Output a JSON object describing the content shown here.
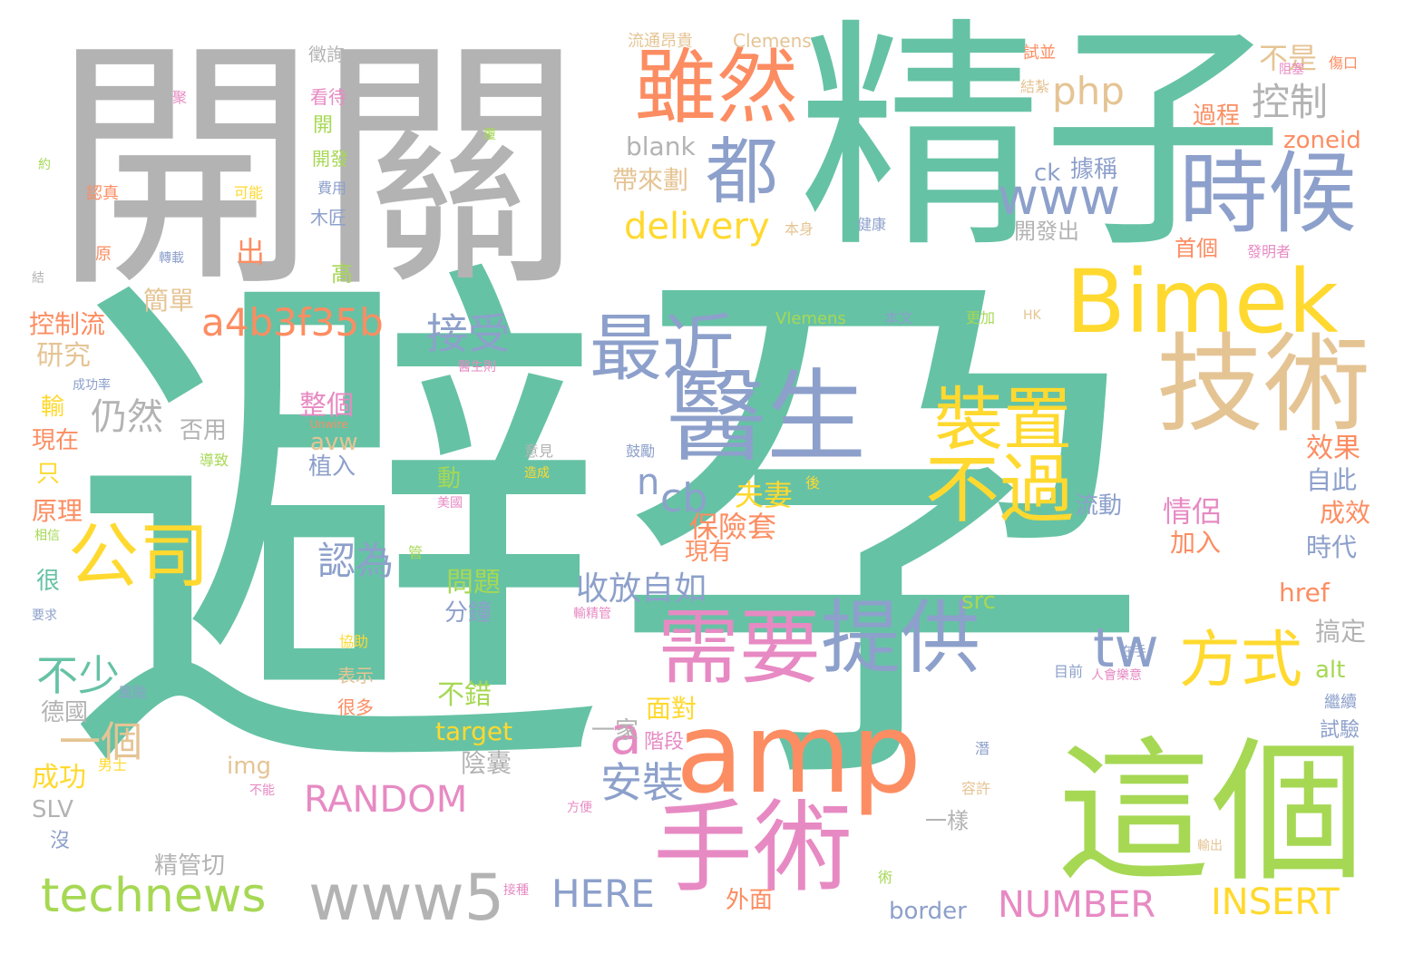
{
  "palette": {
    "green": "#66c2a5",
    "orange": "#fc8d62",
    "blue": "#8da0cb",
    "pink": "#e78ac3",
    "lime": "#a6d854",
    "yellow": "#ffd92f",
    "tan": "#e5c494",
    "gray": "#b3b3b3"
  },
  "words": [
    {
      "id": "w1",
      "text": "避孕"
    },
    {
      "id": "w2",
      "text": "精子"
    },
    {
      "id": "w3",
      "text": "開關"
    },
    {
      "id": "w4",
      "text": "amp"
    },
    {
      "id": "w5",
      "text": "這個"
    },
    {
      "id": "w6",
      "text": "Bimek"
    },
    {
      "id": "w7",
      "text": "技術"
    },
    {
      "id": "w8",
      "text": "醫生"
    },
    {
      "id": "w9",
      "text": "雖然"
    },
    {
      "id": "w10",
      "text": "時候"
    },
    {
      "id": "w11",
      "text": "手術"
    },
    {
      "id": "w12",
      "text": "需要"
    },
    {
      "id": "w13",
      "text": "提供"
    },
    {
      "id": "w14",
      "text": "不過"
    },
    {
      "id": "w15",
      "text": "公司"
    },
    {
      "id": "w16",
      "text": "最近"
    },
    {
      "id": "w17",
      "text": "都"
    },
    {
      "id": "w18",
      "text": "technews"
    },
    {
      "id": "w19",
      "text": "www5"
    },
    {
      "id": "w20",
      "text": "裝置"
    },
    {
      "id": "w21",
      "text": "www"
    },
    {
      "id": "w22",
      "text": "方式"
    },
    {
      "id": "w23",
      "text": "tw"
    },
    {
      "id": "w24",
      "text": "a4b3f35b"
    },
    {
      "id": "w25",
      "text": "RANDOM"
    },
    {
      "id": "w26",
      "text": "NUMBER"
    },
    {
      "id": "w27",
      "text": "INSERT"
    },
    {
      "id": "w28",
      "text": "HERE"
    },
    {
      "id": "w29",
      "text": "delivery"
    },
    {
      "id": "w30",
      "text": "php"
    },
    {
      "id": "w31",
      "text": "控制"
    },
    {
      "id": "w32",
      "text": "接受"
    },
    {
      "id": "w33",
      "text": "仍然"
    },
    {
      "id": "w34",
      "text": "a"
    },
    {
      "id": "w35",
      "text": "安裝"
    },
    {
      "id": "w36",
      "text": "不少"
    },
    {
      "id": "w37",
      "text": "一個"
    },
    {
      "id": "w38",
      "text": "收放自如"
    },
    {
      "id": "w39",
      "text": "認為"
    },
    {
      "id": "w40",
      "text": "cb"
    },
    {
      "id": "w41",
      "text": "n"
    },
    {
      "id": "w42",
      "text": "不是"
    },
    {
      "id": "w43",
      "text": "blank"
    },
    {
      "id": "w44",
      "text": "帶來劃"
    },
    {
      "id": "w45",
      "text": "保險套"
    },
    {
      "id": "w46",
      "text": "夫妻"
    },
    {
      "id": "w47",
      "text": "整個"
    },
    {
      "id": "w48",
      "text": "否用"
    },
    {
      "id": "w49",
      "text": "研究"
    },
    {
      "id": "w50",
      "text": "控制流"
    },
    {
      "id": "w51",
      "text": "簡單"
    },
    {
      "id": "w52",
      "text": "出"
    },
    {
      "id": "w53",
      "text": "過程"
    },
    {
      "id": "w54",
      "text": "zoneid"
    },
    {
      "id": "w55",
      "text": "ck"
    },
    {
      "id": "w56",
      "text": "據稱"
    },
    {
      "id": "w57",
      "text": "開發出"
    },
    {
      "id": "w58",
      "text": "首個"
    },
    {
      "id": "w59",
      "text": "情侶"
    },
    {
      "id": "w60",
      "text": "加入"
    },
    {
      "id": "w61",
      "text": "效果"
    },
    {
      "id": "w62",
      "text": "自此"
    },
    {
      "id": "w63",
      "text": "成效"
    },
    {
      "id": "w64",
      "text": "時代"
    },
    {
      "id": "w65",
      "text": "href"
    },
    {
      "id": "w66",
      "text": "搞定"
    },
    {
      "id": "w67",
      "text": "alt"
    },
    {
      "id": "w68",
      "text": "流動"
    },
    {
      "id": "w69",
      "text": "src"
    },
    {
      "id": "w70",
      "text": "問題"
    },
    {
      "id": "w71",
      "text": "分鐘"
    },
    {
      "id": "w72",
      "text": "不錯"
    },
    {
      "id": "w73",
      "text": "target"
    },
    {
      "id": "w74",
      "text": "陰囊"
    },
    {
      "id": "w75",
      "text": "一家"
    },
    {
      "id": "w76",
      "text": "面對"
    },
    {
      "id": "w77",
      "text": "階段"
    },
    {
      "id": "w78",
      "text": "現有"
    },
    {
      "id": "w79",
      "text": "成功"
    },
    {
      "id": "w80",
      "text": "德國"
    },
    {
      "id": "w81",
      "text": "SLV"
    },
    {
      "id": "w82",
      "text": "img"
    },
    {
      "id": "w83",
      "text": "精管切"
    },
    {
      "id": "w84",
      "text": "border"
    },
    {
      "id": "w85",
      "text": "外面"
    },
    {
      "id": "w86",
      "text": "一樣"
    },
    {
      "id": "w87",
      "text": "植入"
    },
    {
      "id": "w88",
      "text": "avw"
    },
    {
      "id": "w89",
      "text": "動"
    },
    {
      "id": "w90",
      "text": "原理"
    },
    {
      "id": "w91",
      "text": "現在"
    },
    {
      "id": "w92",
      "text": "輸"
    },
    {
      "id": "w93",
      "text": "只"
    },
    {
      "id": "w94",
      "text": "很"
    },
    {
      "id": "w95",
      "text": "沒"
    },
    {
      "id": "w96",
      "text": "流通昂貴"
    },
    {
      "id": "w97",
      "text": "Clemens"
    },
    {
      "id": "w98",
      "text": "徵詢"
    },
    {
      "id": "w99",
      "text": "看待"
    },
    {
      "id": "w100",
      "text": "開"
    },
    {
      "id": "w101",
      "text": "開發"
    },
    {
      "id": "w102",
      "text": "費用"
    },
    {
      "id": "w103",
      "text": "木匠"
    },
    {
      "id": "w104",
      "text": "高"
    },
    {
      "id": "w105",
      "text": "認真"
    },
    {
      "id": "w106",
      "text": "可能"
    },
    {
      "id": "w107",
      "text": "原"
    },
    {
      "id": "w108",
      "text": "轉載"
    },
    {
      "id": "w109",
      "text": "Vlemens"
    },
    {
      "id": "w110",
      "text": "本文"
    },
    {
      "id": "w111",
      "text": "更加"
    },
    {
      "id": "w112",
      "text": "HK"
    },
    {
      "id": "w113",
      "text": "本身"
    },
    {
      "id": "w114",
      "text": "健康"
    },
    {
      "id": "w115",
      "text": "發明者"
    },
    {
      "id": "w116",
      "text": "試並"
    },
    {
      "id": "w117",
      "text": "阻塞"
    },
    {
      "id": "w118",
      "text": "傷口"
    },
    {
      "id": "w119",
      "text": "結紮"
    },
    {
      "id": "w120",
      "text": "繼續"
    },
    {
      "id": "w121",
      "text": "試驗"
    },
    {
      "id": "w122",
      "text": "目前"
    },
    {
      "id": "w123",
      "text": "人會樂意"
    },
    {
      "id": "w124",
      "text": "在手"
    },
    {
      "id": "w125",
      "text": "容許"
    },
    {
      "id": "w126",
      "text": "潛"
    },
    {
      "id": "w127",
      "text": "輸出"
    },
    {
      "id": "w128",
      "text": "術"
    },
    {
      "id": "w129",
      "text": "方便"
    },
    {
      "id": "w130",
      "text": "接種"
    },
    {
      "id": "w131",
      "text": "不能"
    },
    {
      "id": "w132",
      "text": "男士"
    },
    {
      "id": "w133",
      "text": "很多"
    },
    {
      "id": "w134",
      "text": "表示"
    },
    {
      "id": "w135",
      "text": "協助"
    },
    {
      "id": "w136",
      "text": "風險"
    },
    {
      "id": "w137",
      "text": "要求"
    },
    {
      "id": "w138",
      "text": "相信"
    },
    {
      "id": "w139",
      "text": "導致"
    },
    {
      "id": "w140",
      "text": "Unwire"
    },
    {
      "id": "w141",
      "text": "成功率"
    },
    {
      "id": "w142",
      "text": "醫生則"
    },
    {
      "id": "w143",
      "text": "意見"
    },
    {
      "id": "w144",
      "text": "造成"
    },
    {
      "id": "w145",
      "text": "鼓勵"
    },
    {
      "id": "w146",
      "text": "美國"
    },
    {
      "id": "w147",
      "text": "後"
    },
    {
      "id": "w148",
      "text": "輸精管"
    },
    {
      "id": "w149",
      "text": "管"
    },
    {
      "id": "w150",
      "text": "覆"
    },
    {
      "id": "w151",
      "text": "約"
    },
    {
      "id": "w152",
      "text": "結"
    },
    {
      "id": "w153",
      "text": "聚"
    }
  ]
}
